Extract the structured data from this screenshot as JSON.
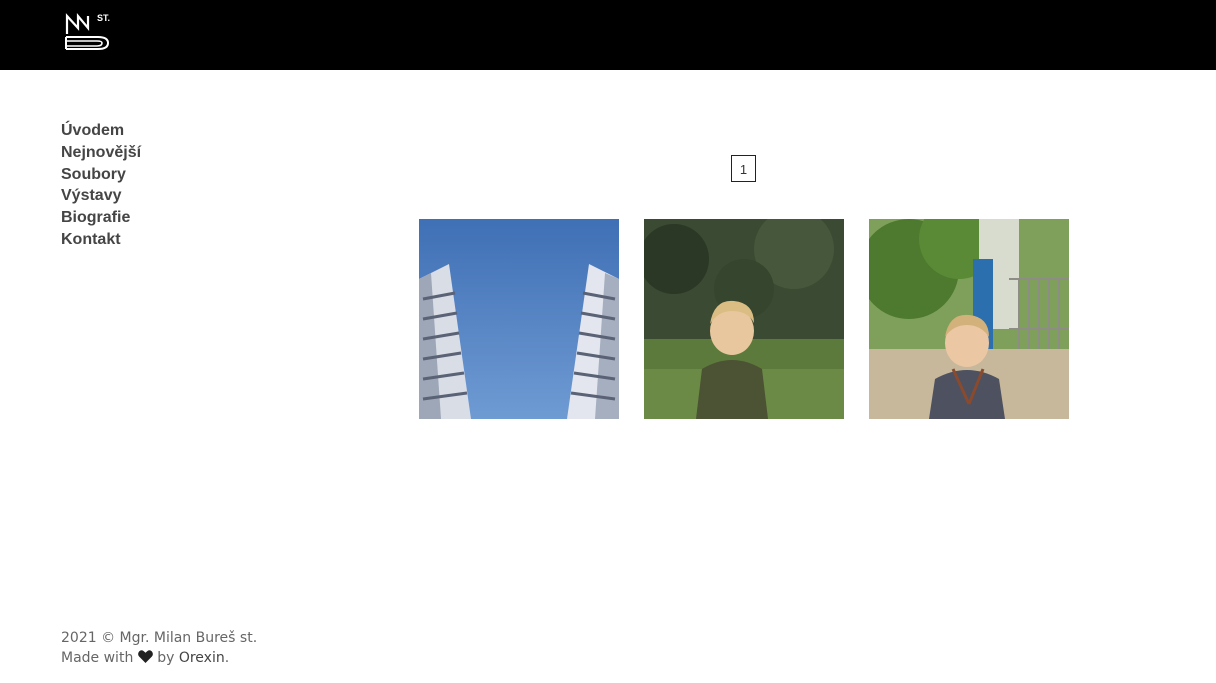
{
  "header": {
    "logo_icon": "site-logo-icon",
    "logo_text": "ST."
  },
  "nav": {
    "items": [
      {
        "label": "Úvodem"
      },
      {
        "label": "Nejnovější"
      },
      {
        "label": "Soubory"
      },
      {
        "label": "Výstavy"
      },
      {
        "label": "Biografie"
      },
      {
        "label": "Kontakt"
      }
    ]
  },
  "pagination": {
    "current": "1"
  },
  "gallery": {
    "items": [
      {
        "subject": "building-towers-sky"
      },
      {
        "subject": "toddler-green-shirt-garden"
      },
      {
        "subject": "toddler-blue-shirt-gate"
      }
    ]
  },
  "footer": {
    "copyright": "2021 © Mgr. Milan Bureš st.",
    "made_with": "Made with",
    "by": "by",
    "author": "Orexin",
    "dot": ".",
    "heart_icon": "heart-icon"
  }
}
